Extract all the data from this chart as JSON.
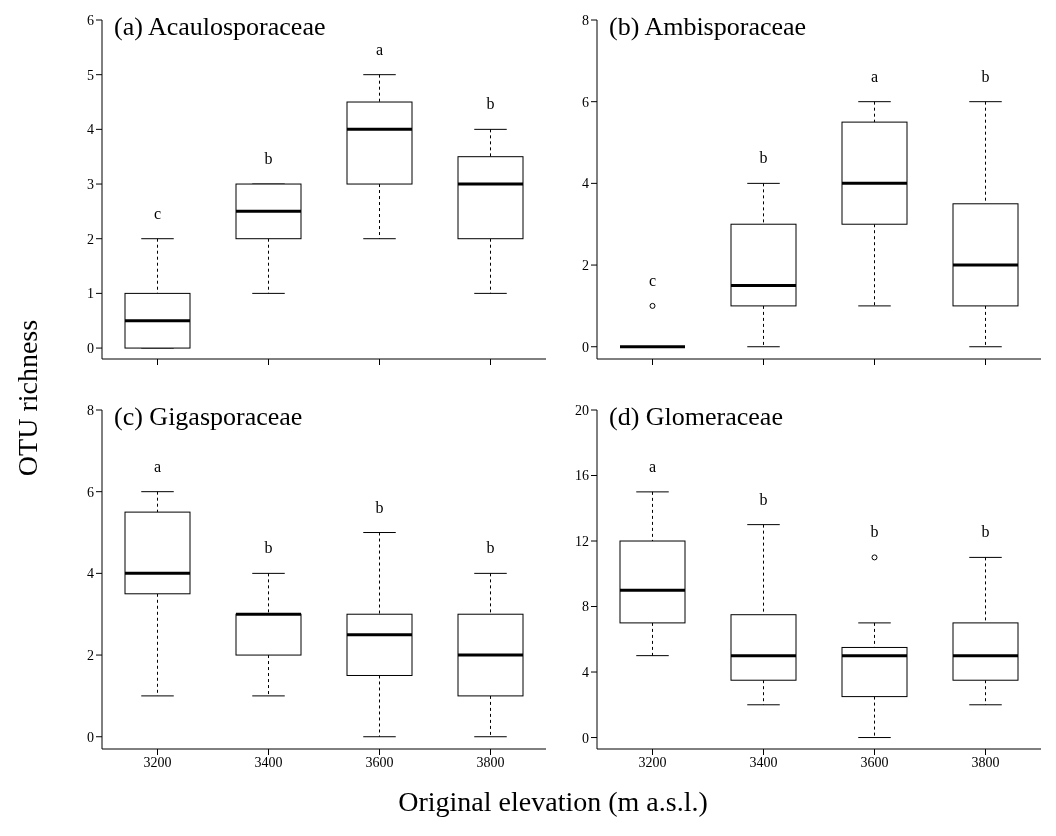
{
  "chart_data": [
    {
      "type": "box",
      "title": "(a) Acaulosporaceae",
      "ylabel": "OTU richness",
      "categories": [
        "3200",
        "3400",
        "3600",
        "3800"
      ],
      "ylim": [
        -0.2,
        6
      ],
      "yticks": [
        0,
        1,
        2,
        3,
        4,
        5,
        6
      ],
      "tick_labels": "y",
      "boxes": [
        {
          "low": 0,
          "q1": 0,
          "median": 0.5,
          "q3": 1,
          "high": 2
        },
        {
          "low": 1,
          "q1": 2,
          "median": 2.5,
          "q3": 3,
          "high": 3
        },
        {
          "low": 2,
          "q1": 3,
          "median": 4,
          "q3": 4.5,
          "high": 5
        },
        {
          "low": 1,
          "q1": 2,
          "median": 3,
          "q3": 3.5,
          "high": 4
        }
      ],
      "annotations": [
        "c",
        "b",
        "a",
        "b"
      ]
    },
    {
      "type": "box",
      "title": "(b) Ambisporaceae",
      "categories": [
        "3200",
        "3400",
        "3600",
        "3800"
      ],
      "ylim": [
        -0.3,
        8
      ],
      "yticks": [
        0,
        2,
        4,
        6,
        8
      ],
      "tick_labels": "y",
      "boxes": [
        {
          "low": 0,
          "q1": 0,
          "median": 0,
          "q3": 0,
          "high": 0,
          "outliers": [
            1
          ]
        },
        {
          "low": 0,
          "q1": 1,
          "median": 1.5,
          "q3": 3,
          "high": 4
        },
        {
          "low": 1,
          "q1": 3,
          "median": 4,
          "q3": 5.5,
          "high": 6
        },
        {
          "low": 0,
          "q1": 1,
          "median": 2,
          "q3": 3.5,
          "high": 6
        }
      ],
      "annotations": [
        "c",
        "b",
        "a",
        "b"
      ]
    },
    {
      "type": "box",
      "title": "(c) Gigasporaceae",
      "categories": [
        "3200",
        "3400",
        "3600",
        "3800"
      ],
      "ylim": [
        -0.3,
        8
      ],
      "yticks": [
        0,
        2,
        4,
        6,
        8
      ],
      "boxes": [
        {
          "low": 1,
          "q1": 3.5,
          "median": 4,
          "q3": 5.5,
          "high": 6
        },
        {
          "low": 1,
          "q1": 2,
          "median": 3,
          "q3": 3,
          "high": 4
        },
        {
          "low": 0,
          "q1": 1.5,
          "median": 2.5,
          "q3": 3,
          "high": 5
        },
        {
          "low": 0,
          "q1": 1,
          "median": 2,
          "q3": 3,
          "high": 4
        }
      ],
      "annotations": [
        "a",
        "b",
        "b",
        "b"
      ]
    },
    {
      "type": "box",
      "title": "(d) Glomeraceae",
      "xlabel": "Original elevation (m a.s.l.)",
      "categories": [
        "3200",
        "3400",
        "3600",
        "3800"
      ],
      "ylim": [
        -0.7,
        20
      ],
      "yticks": [
        0,
        4,
        8,
        12,
        16,
        20
      ],
      "boxes": [
        {
          "low": 5,
          "q1": 7,
          "median": 9,
          "q3": 12,
          "high": 15
        },
        {
          "low": 2,
          "q1": 3.5,
          "median": 5,
          "q3": 7.5,
          "high": 13
        },
        {
          "low": 0,
          "q1": 2.5,
          "median": 5,
          "q3": 5.5,
          "high": 7,
          "outliers": [
            11
          ]
        },
        {
          "low": 2,
          "q1": 3.5,
          "median": 5,
          "q3": 7,
          "high": 11
        }
      ],
      "annotations": [
        "a",
        "b",
        "b",
        "b"
      ]
    }
  ]
}
